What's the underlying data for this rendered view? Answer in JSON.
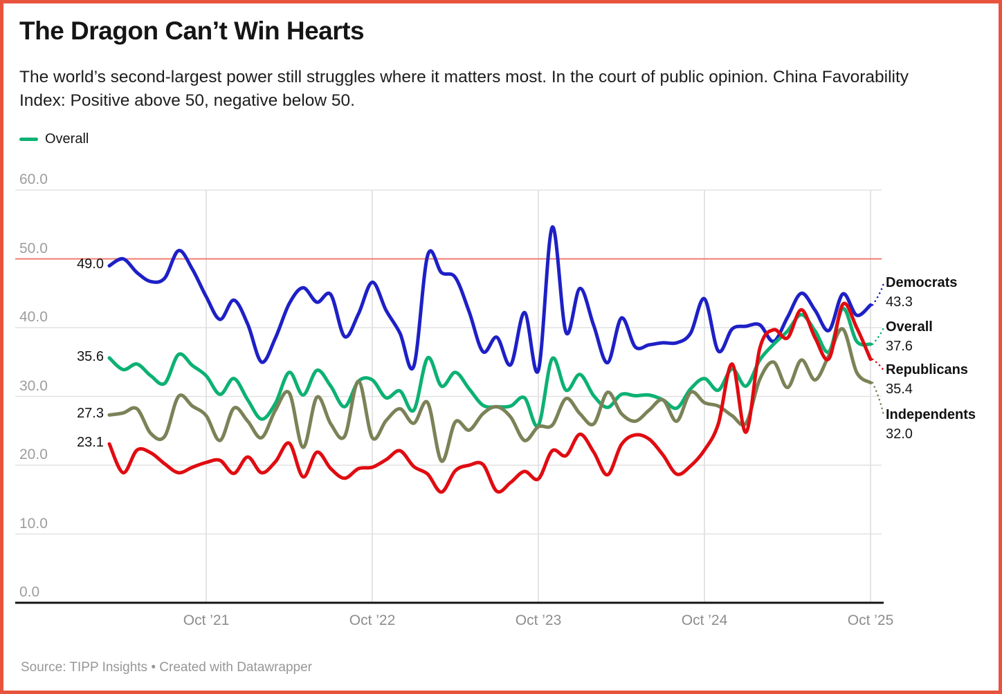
{
  "header": {
    "title": "The Dragon Can’t Win Hearts",
    "subtitle": "The world’s second-largest power still struggles where it matters most. In the court of public opinion. China Favorability Index: Positive above 50, negative below 50."
  },
  "legend": {
    "items": [
      {
        "label": "Overall",
        "color": "#0cb173"
      }
    ]
  },
  "footer": {
    "source": "Source: TIPP Insights • Created with Datawrapper"
  },
  "frame": {
    "border_color": "#e8533d",
    "background": "#ffffff"
  },
  "chart_data": {
    "type": "line",
    "title": "The Dragon Can’t Win Hearts",
    "xlabel": "",
    "ylabel": "",
    "ylim": [
      0,
      60
    ],
    "grid": true,
    "legend_position": "top-left",
    "y_tick_values": [
      60,
      50,
      40,
      30,
      20,
      10,
      0
    ],
    "y_tick_labels": [
      "60.0",
      "50.0",
      "40.0",
      "30.0",
      "20.0",
      "10.0",
      "0.0"
    ],
    "x_ticks": [
      {
        "label": "Oct ’21",
        "month_index": 7
      },
      {
        "label": "Oct ’22",
        "month_index": 19
      },
      {
        "label": "Oct ’23",
        "month_index": 31
      },
      {
        "label": "Oct ’24",
        "month_index": 43
      },
      {
        "label": "Oct ’25",
        "month_index": 55
      }
    ],
    "reference_line": {
      "value": 50,
      "color": "#f0897c"
    },
    "months": [
      "Mar 2021",
      "Apr 2021",
      "May 2021",
      "Jun 2021",
      "Jul 2021",
      "Aug 2021",
      "Sep 2021",
      "Oct 2021",
      "Nov 2021",
      "Dec 2021",
      "Jan 2022",
      "Feb 2022",
      "Mar 2022",
      "Apr 2022",
      "May 2022",
      "Jun 2022",
      "Jul 2022",
      "Aug 2022",
      "Sep 2022",
      "Oct 2022",
      "Nov 2022",
      "Dec 2022",
      "Jan 2023",
      "Feb 2023",
      "Mar 2023",
      "Apr 2023",
      "May 2023",
      "Jun 2023",
      "Jul 2023",
      "Aug 2023",
      "Sep 2023",
      "Oct 2023",
      "Nov 2023",
      "Dec 2023",
      "Jan 2024",
      "Feb 2024",
      "Mar 2024",
      "Apr 2024",
      "May 2024",
      "Jun 2024",
      "Jul 2024",
      "Aug 2024",
      "Sep 2024",
      "Oct 2024",
      "Nov 2024",
      "Dec 2024",
      "Jan 2025",
      "Feb 2025",
      "Mar 2025",
      "Apr 2025",
      "May 2025",
      "Jun 2025",
      "Jul 2025",
      "Aug 2025",
      "Sep 2025",
      "Oct 2025"
    ],
    "series": [
      {
        "name": "Democrats",
        "color": "#1e20c6",
        "start_label": "49.0",
        "end_label": "43.3",
        "values": [
          49.0,
          50.0,
          48.0,
          46.7,
          47.2,
          51.2,
          48.5,
          44.5,
          41.2,
          44.0,
          40.5,
          35.0,
          38.5,
          43.5,
          45.8,
          43.7,
          44.8,
          38.7,
          42.0,
          46.6,
          42.5,
          39.2,
          34.4,
          50.5,
          48.0,
          47.3,
          42.3,
          36.5,
          38.6,
          34.6,
          42.2,
          33.8,
          54.6,
          39.3,
          45.7,
          40.3,
          34.9,
          41.4,
          37.2,
          37.5,
          37.8,
          37.8,
          39.2,
          44.2,
          36.6,
          39.8,
          40.2,
          40.4,
          38.0,
          41.5,
          45.0,
          42.5,
          39.6,
          44.9,
          41.8,
          43.3
        ]
      },
      {
        "name": "Overall",
        "color": "#0cb173",
        "start_label": "35.6",
        "end_label": "37.6",
        "values": [
          35.6,
          33.9,
          34.7,
          33.0,
          31.9,
          36.1,
          34.5,
          33.0,
          30.3,
          32.6,
          29.5,
          26.7,
          29.0,
          33.5,
          30.2,
          33.8,
          31.5,
          28.5,
          32.2,
          32.4,
          29.8,
          30.8,
          28.0,
          35.6,
          31.5,
          33.5,
          31.1,
          28.7,
          28.5,
          28.6,
          29.8,
          25.8,
          35.5,
          30.9,
          33.2,
          30.1,
          28.4,
          30.3,
          30.1,
          30.2,
          29.5,
          28.3,
          31.1,
          32.6,
          30.9,
          34.0,
          31.5,
          35.3,
          37.6,
          39.5,
          41.9,
          39.5,
          36.5,
          42.8,
          38.0,
          37.6
        ]
      },
      {
        "name": "Republicans",
        "color": "#e00c11",
        "start_label": "23.1",
        "end_label": "35.4",
        "values": [
          23.1,
          18.9,
          22.2,
          21.8,
          20.2,
          18.9,
          19.7,
          20.4,
          20.7,
          18.8,
          21.2,
          18.9,
          20.5,
          23.2,
          18.3,
          21.9,
          19.5,
          18.1,
          19.5,
          19.7,
          20.8,
          22.1,
          19.8,
          18.7,
          16.1,
          19.2,
          20.0,
          20.1,
          16.2,
          17.5,
          19.1,
          18.0,
          22.1,
          21.4,
          24.5,
          21.9,
          18.6,
          23.0,
          24.4,
          23.8,
          21.5,
          18.7,
          19.9,
          22.2,
          26.0,
          34.7,
          24.8,
          37.0,
          39.7,
          38.5,
          42.6,
          38.5,
          35.5,
          43.4,
          40.0,
          35.4
        ]
      },
      {
        "name": "Independents",
        "color": "#7b8257",
        "start_label": "27.3",
        "end_label": "32.0",
        "values": [
          27.3,
          27.6,
          28.2,
          24.6,
          24.2,
          30.0,
          28.6,
          27.2,
          23.6,
          28.3,
          26.4,
          24.0,
          28.0,
          30.5,
          22.6,
          29.9,
          26.0,
          24.2,
          32.2,
          24.0,
          26.5,
          28.2,
          26.1,
          29.1,
          20.6,
          26.3,
          25.1,
          27.5,
          28.5,
          27.0,
          23.6,
          25.6,
          25.8,
          29.7,
          27.5,
          26.0,
          30.6,
          27.5,
          26.4,
          28.0,
          29.5,
          26.4,
          30.6,
          29.1,
          28.6,
          27.2,
          26.1,
          32.5,
          35.0,
          31.3,
          35.3,
          32.4,
          36.0,
          39.8,
          33.5,
          32.0
        ]
      }
    ]
  }
}
